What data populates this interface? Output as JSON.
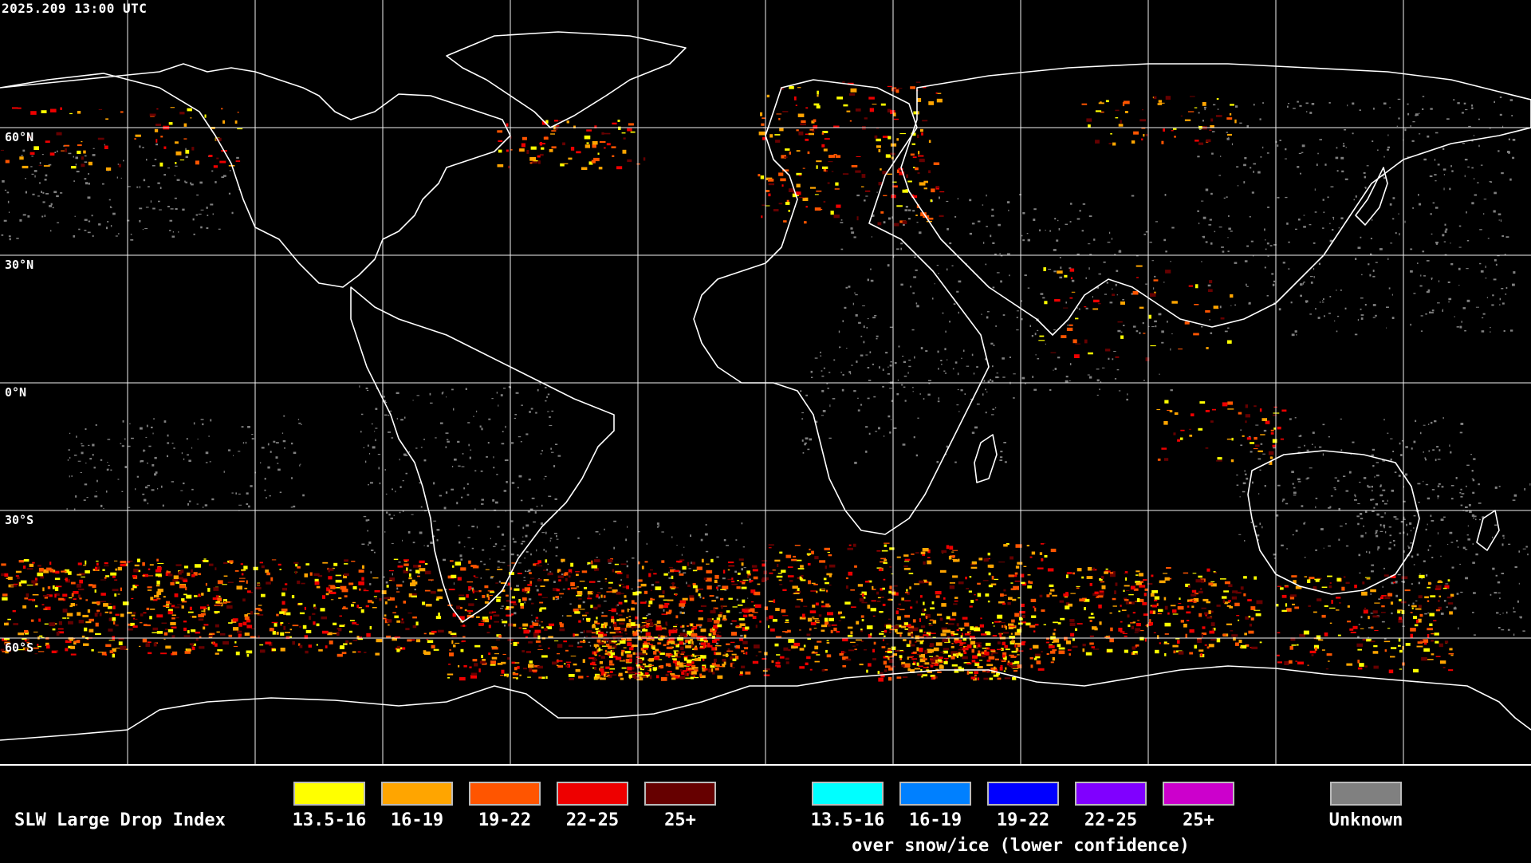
{
  "timestamp": "2025.209 13:00 UTC",
  "lat_labels": {
    "n60": "60°N",
    "n30": "30°N",
    "eq": "0°N",
    "s30": "30°S",
    "s60": "60°S"
  },
  "legend": {
    "title": "SLW Large Drop Index",
    "standard": [
      {
        "label": "13.5-16",
        "color": "#ffff00"
      },
      {
        "label": "16-19",
        "color": "#ffa500"
      },
      {
        "label": "19-22",
        "color": "#ff5500"
      },
      {
        "label": "22-25",
        "color": "#ee0000"
      },
      {
        "label": "25+",
        "color": "#660000"
      }
    ],
    "snow_ice": [
      {
        "label": "13.5-16",
        "color": "#00ffff"
      },
      {
        "label": "16-19",
        "color": "#0080ff"
      },
      {
        "label": "19-22",
        "color": "#0000ff"
      },
      {
        "label": "22-25",
        "color": "#8000ff"
      },
      {
        "label": "25+",
        "color": "#cc00cc"
      }
    ],
    "snow_ice_note": "over snow/ice (lower confidence)",
    "unknown": {
      "label": "Unknown",
      "color": "#808080"
    }
  }
}
